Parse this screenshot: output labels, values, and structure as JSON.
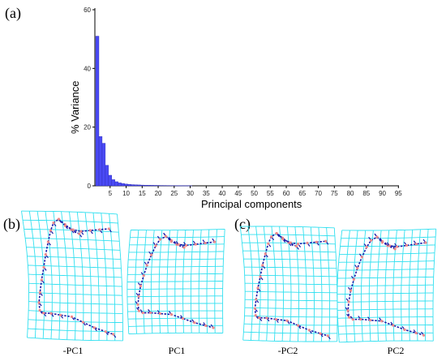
{
  "labels": {
    "panel_a": "(a)",
    "panel_b": "(b)",
    "panel_c": "(c)"
  },
  "chart_data": {
    "type": "bar",
    "xlabel": "Principal components",
    "ylabel": "% Variance",
    "ylim": [
      0,
      60
    ],
    "yticks": [
      0,
      20,
      40,
      60
    ],
    "xticks": [
      5,
      10,
      15,
      20,
      25,
      30,
      35,
      40,
      45,
      50,
      55,
      60,
      65,
      70,
      75,
      80,
      85,
      90,
      95
    ],
    "values": [
      51.0,
      16.8,
      14.5,
      7.0,
      3.6,
      2.1,
      1.4,
      1.0,
      0.8,
      0.6,
      0.5,
      0.4,
      0.35,
      0.3,
      0.25,
      0.22,
      0.2,
      0.18,
      0.16,
      0.14,
      0.12,
      0.11,
      0.1,
      0.09,
      0.08,
      0.07,
      0.06,
      0.05,
      0.05,
      0.04
    ],
    "bar_color": "#4a4af5",
    "grid": false
  },
  "shapes": [
    {
      "caption": "-PC1"
    },
    {
      "caption": "PC1"
    },
    {
      "caption": "-PC2"
    },
    {
      "caption": "PC2"
    }
  ],
  "colors": {
    "grid": "#33e0f0",
    "vector": "#1a1aa8",
    "landmark": "#f08a8a"
  }
}
